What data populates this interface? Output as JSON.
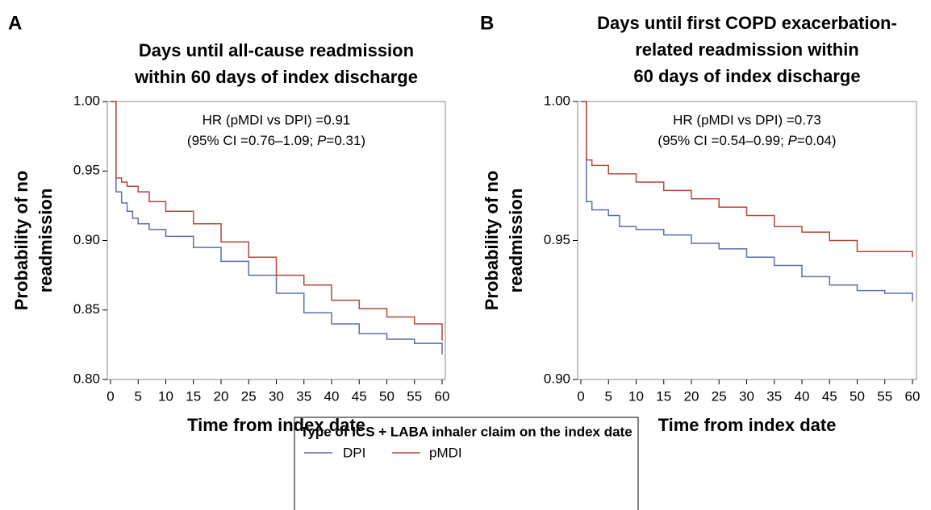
{
  "chart_data": [
    {
      "type": "step",
      "panel_label": "A",
      "title": [
        "Days until all-cause readmission",
        "within 60 days of index discharge"
      ],
      "xlabel": "Time from index date",
      "ylabel": [
        "Probability of no",
        "readmission"
      ],
      "annotation": {
        "line1": "HR (pMDI vs DPI) =0.91",
        "line2_pre": "(95% CI =0.76–1.09; ",
        "line2_p": "P",
        "line2_post": "=0.31)"
      },
      "xlim": [
        0,
        60
      ],
      "xticks": [
        0,
        5,
        10,
        15,
        20,
        25,
        30,
        35,
        40,
        45,
        50,
        55,
        60
      ],
      "ylim": [
        0.8,
        1.0
      ],
      "yticks": [
        {
          "value": 0.8,
          "label": "0.80"
        },
        {
          "value": 0.85,
          "label": "0.85"
        },
        {
          "value": 0.9,
          "label": "0.90"
        },
        {
          "value": 0.95,
          "label": "0.95"
        },
        {
          "value": 1.0,
          "label": "1.00"
        }
      ],
      "series": [
        {
          "name": "DPI",
          "color": "#5b6cb3",
          "x": [
            0,
            1,
            2,
            3,
            4,
            5,
            7,
            10,
            15,
            20,
            25,
            30,
            35,
            40,
            45,
            50,
            55,
            60
          ],
          "values": [
            1.0,
            0.935,
            0.927,
            0.921,
            0.916,
            0.912,
            0.908,
            0.903,
            0.895,
            0.885,
            0.875,
            0.862,
            0.848,
            0.84,
            0.833,
            0.829,
            0.826,
            0.818
          ]
        },
        {
          "name": "pMDI",
          "color": "#b4473b",
          "x": [
            0,
            1,
            2,
            3,
            5,
            7,
            10,
            15,
            20,
            25,
            30,
            35,
            40,
            45,
            50,
            55,
            60
          ],
          "values": [
            1.0,
            0.945,
            0.942,
            0.939,
            0.935,
            0.928,
            0.921,
            0.912,
            0.899,
            0.888,
            0.875,
            0.868,
            0.857,
            0.851,
            0.845,
            0.84,
            0.828
          ]
        }
      ]
    },
    {
      "type": "step",
      "panel_label": "B",
      "title": [
        "Days until first COPD exacerbation-",
        "related readmission within",
        "60 days of index discharge"
      ],
      "xlabel": "Time from index date",
      "ylabel": [
        "Probability of no",
        "readmission"
      ],
      "annotation": {
        "line1": "HR (pMDI vs DPI) =0.73",
        "line2_pre": "(95% CI =0.54–0.99; ",
        "line2_p": "P",
        "line2_post": "=0.04)"
      },
      "xlim": [
        0,
        60
      ],
      "xticks": [
        0,
        5,
        10,
        15,
        20,
        25,
        30,
        35,
        40,
        45,
        50,
        55,
        60
      ],
      "ylim": [
        0.9,
        1.0
      ],
      "yticks": [
        {
          "value": 0.9,
          "label": "0.90"
        },
        {
          "value": 0.95,
          "label": "0.95"
        },
        {
          "value": 1.0,
          "label": "1.00"
        }
      ],
      "series": [
        {
          "name": "DPI",
          "color": "#5b6cb3",
          "x": [
            0,
            1,
            2,
            5,
            7,
            10,
            15,
            20,
            25,
            30,
            35,
            40,
            45,
            50,
            55,
            60
          ],
          "values": [
            1.0,
            0.964,
            0.961,
            0.959,
            0.955,
            0.954,
            0.952,
            0.949,
            0.947,
            0.944,
            0.941,
            0.937,
            0.934,
            0.932,
            0.931,
            0.928
          ]
        },
        {
          "name": "pMDI",
          "color": "#b4473b",
          "x": [
            0,
            1,
            2,
            5,
            10,
            15,
            20,
            25,
            30,
            35,
            40,
            45,
            50,
            55,
            60
          ],
          "values": [
            1.0,
            0.979,
            0.977,
            0.974,
            0.971,
            0.968,
            0.965,
            0.962,
            0.959,
            0.955,
            0.953,
            0.95,
            0.946,
            0.946,
            0.944
          ]
        }
      ]
    }
  ],
  "legend_title": "Type of ICS + LABA inhaler claim on the index date"
}
